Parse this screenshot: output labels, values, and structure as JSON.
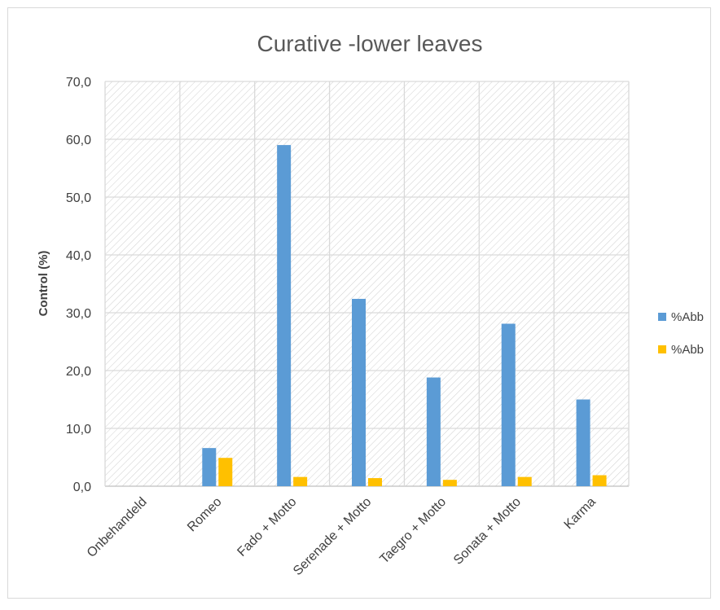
{
  "chart_data": {
    "type": "bar",
    "title": "Curative -lower leaves",
    "xlabel": "",
    "ylabel": "Control (%)",
    "ylim": [
      0,
      70
    ],
    "yticks": [
      "0,0",
      "10,0",
      "20,0",
      "30,0",
      "40,0",
      "50,0",
      "60,0",
      "70,0"
    ],
    "categories": [
      "Onbehandeld",
      "Romeo",
      "Fado + Motto",
      "Serenade + Motto",
      "Taegro + Motto",
      "Sonata + Motto",
      "Karma"
    ],
    "series": [
      {
        "name": "%Abb",
        "color": "#5b9bd5",
        "values": [
          0,
          6.6,
          59.0,
          32.4,
          18.8,
          28.1,
          15.0
        ]
      },
      {
        "name": "%Abb",
        "color": "#ffc000",
        "values": [
          0,
          4.9,
          1.6,
          1.4,
          1.1,
          1.6,
          1.9
        ]
      }
    ],
    "grid": true,
    "plot_background": "hatched",
    "legend_position": "right"
  }
}
